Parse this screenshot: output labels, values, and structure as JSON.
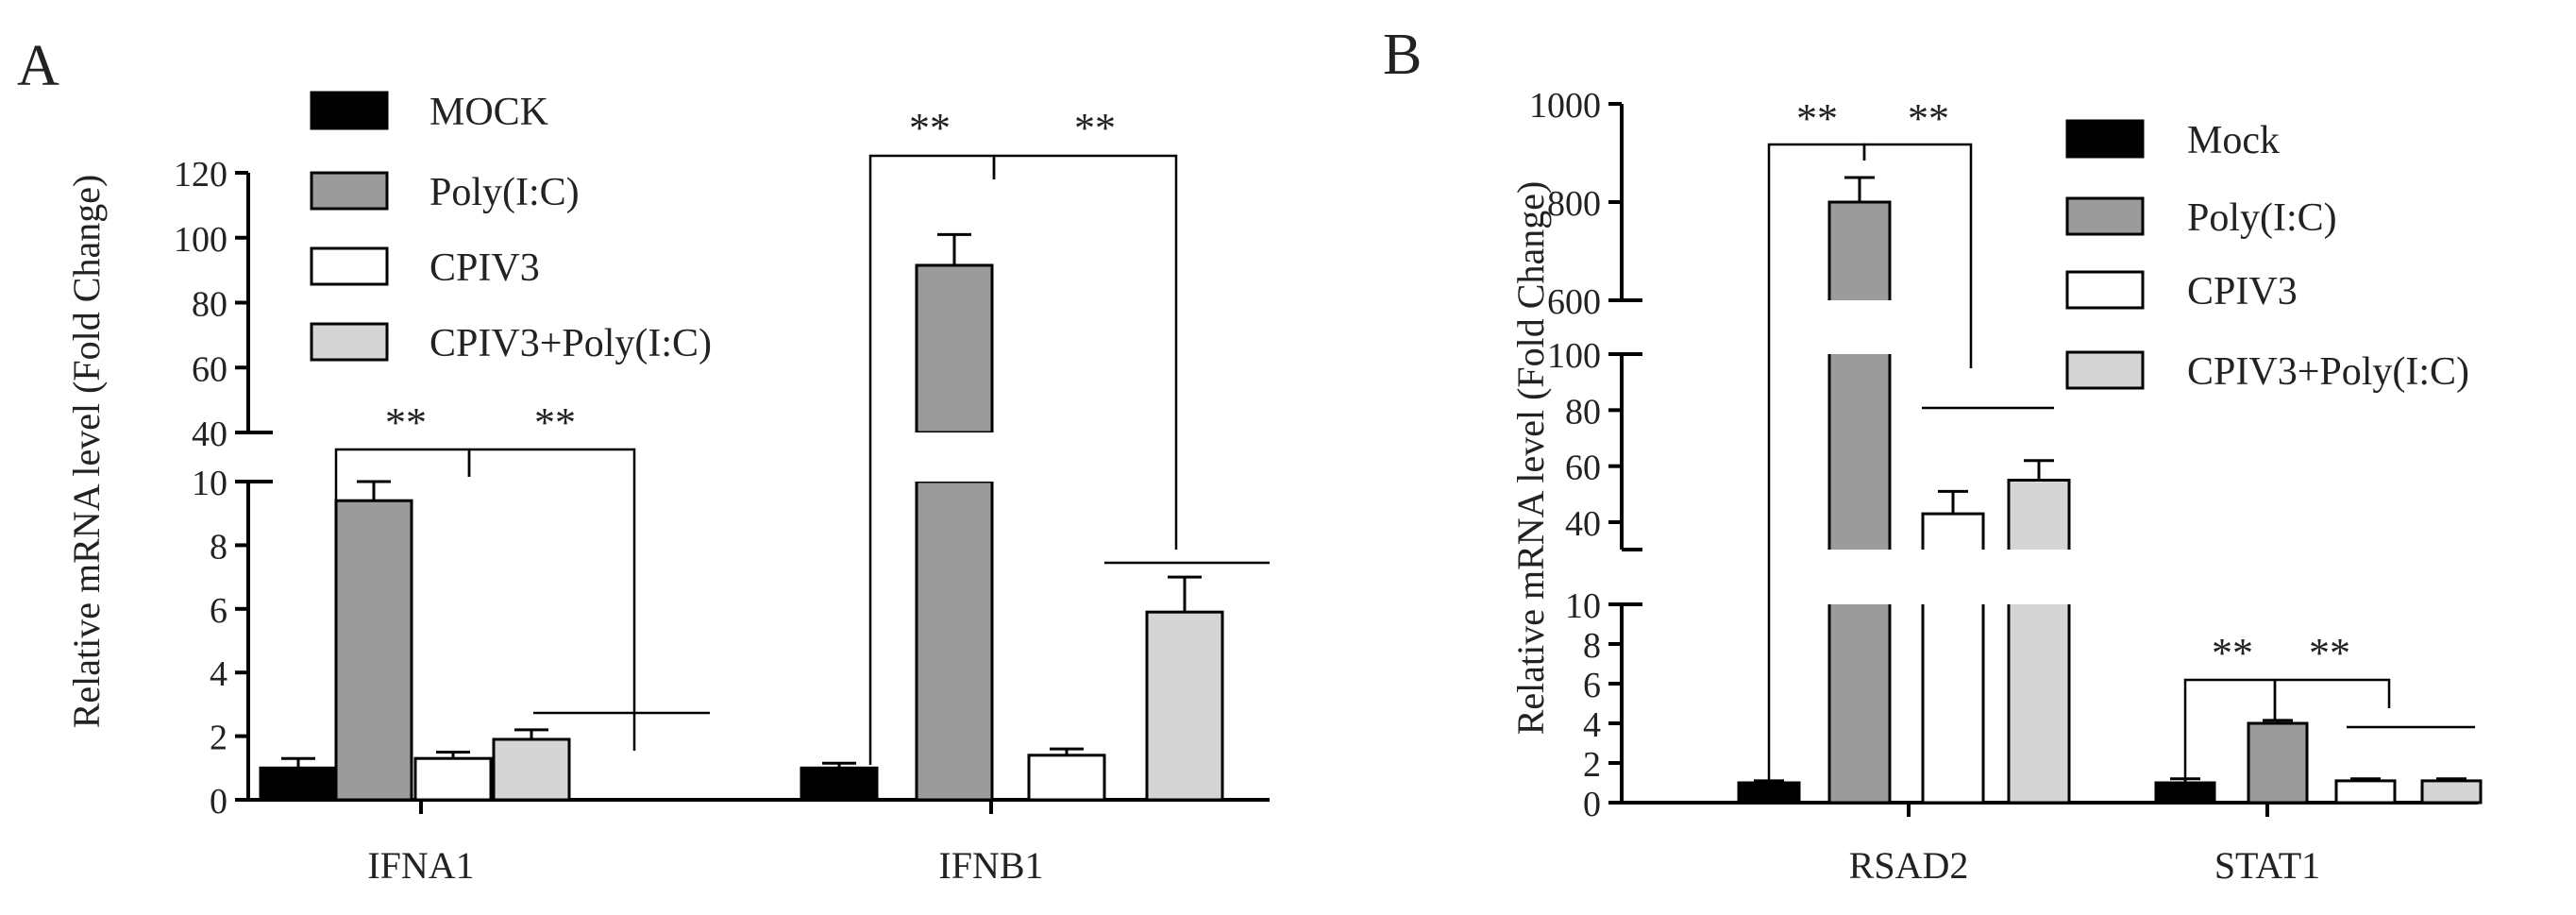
{
  "colors": {
    "MOCK": "#000000",
    "Poly": "#9b9b9b",
    "CPIV3": "#ffffff",
    "Combo": "#d5d5d5"
  },
  "chart_data": [
    {
      "panel_label": "A",
      "type": "bar",
      "ylabel": "Relative mRNA level (Fold Change)",
      "y_axis_break": {
        "lower_range": [
          0,
          10
        ],
        "upper_range": [
          40,
          120
        ]
      },
      "yticks_lower": [
        "0",
        "2",
        "4",
        "6",
        "8",
        "10"
      ],
      "yticks_upper": [
        "40",
        "60",
        "80",
        "100",
        "120"
      ],
      "categories": [
        "IFNA1",
        "IFNB1"
      ],
      "legend": {
        "position": "top-center",
        "entries": [
          "MOCK",
          "Poly(I:C)",
          "CPIV3",
          "CPIV3+Poly(I:C)"
        ]
      },
      "series": [
        {
          "name": "MOCK",
          "values": [
            1.0,
            1.0
          ],
          "errors": [
            0.3,
            0.15
          ]
        },
        {
          "name": "Poly(I:C)",
          "values": [
            9.4,
            91.5
          ],
          "errors": [
            0.6,
            9.5
          ]
        },
        {
          "name": "CPIV3",
          "values": [
            1.3,
            1.4
          ],
          "errors": [
            0.2,
            0.2
          ]
        },
        {
          "name": "CPIV3+Poly(I:C)",
          "values": [
            1.9,
            5.9
          ],
          "errors": [
            0.3,
            1.1
          ]
        }
      ],
      "significance": [
        {
          "category": "IFNA1",
          "label": "**"
        },
        {
          "category": "IFNA1",
          "label": "**"
        },
        {
          "category": "IFNB1",
          "label": "**"
        },
        {
          "category": "IFNB1",
          "label": "**"
        }
      ]
    },
    {
      "panel_label": "B",
      "type": "bar",
      "ylabel": "Relative mRNA level (Fold Change)",
      "y_axis_break": {
        "lower_range": [
          0,
          10
        ],
        "middle_range": [
          30,
          100
        ],
        "upper_range": [
          600,
          1000
        ]
      },
      "yticks_lower": [
        "0",
        "2",
        "4",
        "6",
        "8",
        "10"
      ],
      "yticks_middle": [
        "40",
        "60",
        "80",
        "100"
      ],
      "yticks_upper": [
        "600",
        "800",
        "1000"
      ],
      "categories": [
        "RSAD2",
        "STAT1"
      ],
      "legend": {
        "position": "top-right",
        "entries": [
          "Mock",
          "Poly(I:C)",
          "CPIV3",
          "CPIV3+Poly(I:C)"
        ]
      },
      "series": [
        {
          "name": "Mock",
          "values": [
            1.0,
            1.0
          ],
          "errors": [
            0.1,
            0.2
          ]
        },
        {
          "name": "Poly(I:C)",
          "values": [
            800,
            4.0
          ],
          "errors": [
            50,
            0.15
          ]
        },
        {
          "name": "CPIV3",
          "values": [
            43,
            1.1
          ],
          "errors": [
            8,
            0.1
          ]
        },
        {
          "name": "CPIV3+Poly(I:C)",
          "values": [
            55,
            1.1
          ],
          "errors": [
            7,
            0.1
          ]
        }
      ],
      "significance": [
        {
          "category": "RSAD2",
          "label": "**"
        },
        {
          "category": "RSAD2",
          "label": "**"
        },
        {
          "category": "STAT1",
          "label": "**"
        },
        {
          "category": "STAT1",
          "label": "**"
        }
      ]
    }
  ]
}
